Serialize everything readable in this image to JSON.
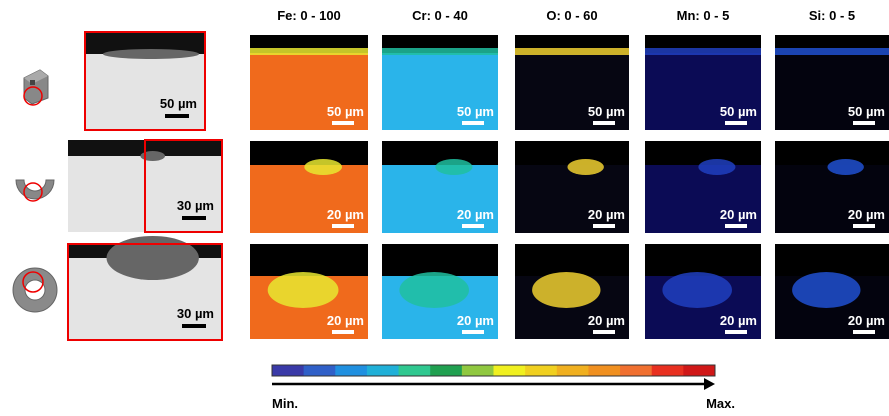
{
  "columns": [
    "Fe: 0 - 100",
    "Cr: 0 - 40",
    "O: 0 - 60",
    "Mn: 0 - 5",
    "Si: 0 - 5"
  ],
  "rows": [
    {
      "sem_scale": "50 µm",
      "maps": [
        "50 µm",
        "50 µm",
        "50 µm",
        "50 µm",
        "50 µm"
      ]
    },
    {
      "sem_scale": "30 µm",
      "maps": [
        "20 µm",
        "20 µm",
        "20 µm",
        "20 µm",
        "20 µm"
      ]
    },
    {
      "sem_scale": "30 µm",
      "maps": [
        "20 µm",
        "20 µm",
        "20 µm",
        "20 µm",
        "20 µm"
      ]
    }
  ],
  "colorbar": {
    "min": "Min.",
    "max": "Max."
  }
}
